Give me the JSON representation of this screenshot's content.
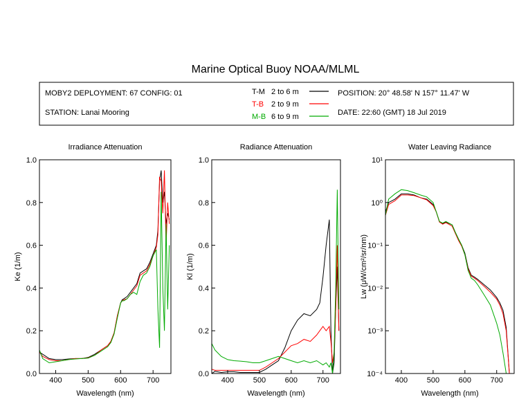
{
  "title": "Marine Optical Buoy NOAA/MLML",
  "info": {
    "deployment": "MOBY2 DEPLOYMENT: 67 CONFIG: 01",
    "station": "STATION: Lanai Mooring",
    "position": "POSITION: 20° 48.58' N   157° 11.47' W",
    "date": "DATE: 22:60 (GMT) 18 Jul 2019"
  },
  "legend": [
    {
      "code": "T-M",
      "range": "2 to 6  m",
      "color": "#000000"
    },
    {
      "code": "T-B",
      "range": "2 to 9  m",
      "color": "#ff0000"
    },
    {
      "code": "M-B",
      "range": "6 to 9  m",
      "color": "#00aa00"
    }
  ],
  "chart_data": [
    {
      "type": "line",
      "title": "Irradiance Attenuation",
      "xlabel": "Wavelength (nm)",
      "ylabel": "Ke  (1/m)",
      "xlim": [
        350,
        755
      ],
      "ylim": [
        0,
        1
      ],
      "xticks": [
        400,
        500,
        600,
        700
      ],
      "xtick_labels": [
        "400",
        "500",
        "600",
        "700"
      ],
      "yticks": [
        0,
        0.2,
        0.4,
        0.6,
        0.8,
        1.0
      ],
      "ytick_labels": [
        "0.0",
        "0.2",
        "0.4",
        "0.6",
        "0.8",
        "1.0"
      ],
      "x": [
        350,
        360,
        380,
        400,
        420,
        440,
        460,
        480,
        500,
        520,
        540,
        560,
        570,
        580,
        590,
        600,
        605,
        610,
        620,
        630,
        640,
        650,
        660,
        670,
        680,
        690,
        700,
        710,
        715,
        720,
        725,
        730,
        735,
        740,
        745,
        750
      ],
      "series": [
        {
          "name": "T-M",
          "values": [
            0.1,
            0.09,
            0.07,
            0.065,
            0.065,
            0.068,
            0.07,
            0.07,
            0.075,
            0.09,
            0.11,
            0.13,
            0.15,
            0.19,
            0.27,
            0.33,
            0.345,
            0.35,
            0.36,
            0.38,
            0.4,
            0.42,
            0.47,
            0.48,
            0.49,
            0.52,
            0.56,
            0.6,
            0.67,
            0.9,
            0.95,
            0.8,
            0.85,
            0.7,
            0.75,
            0.72
          ]
        },
        {
          "name": "T-B",
          "values": [
            0.1,
            0.08,
            0.065,
            0.06,
            0.06,
            0.065,
            0.07,
            0.07,
            0.073,
            0.085,
            0.11,
            0.13,
            0.15,
            0.19,
            0.27,
            0.33,
            0.34,
            0.345,
            0.35,
            0.37,
            0.39,
            0.41,
            0.46,
            0.47,
            0.48,
            0.51,
            0.55,
            0.59,
            0.65,
            0.92,
            0.9,
            0.75,
            0.95,
            0.6,
            0.8,
            0.7
          ]
        },
        {
          "name": "M-B",
          "values": [
            0.11,
            0.07,
            0.05,
            0.055,
            0.06,
            0.065,
            0.068,
            0.07,
            0.072,
            0.085,
            0.105,
            0.125,
            0.145,
            0.185,
            0.26,
            0.33,
            0.34,
            0.34,
            0.35,
            0.37,
            0.38,
            0.37,
            0.43,
            0.46,
            0.47,
            0.5,
            0.55,
            0.58,
            0.3,
            0.12,
            0.85,
            0.4,
            0.2,
            0.7,
            0.3,
            0.6
          ]
        }
      ]
    },
    {
      "type": "line",
      "title": "Radiance Attenuation",
      "xlabel": "Wavelength (nm)",
      "ylabel": "Kl  (1/m)",
      "xlim": [
        350,
        755
      ],
      "ylim": [
        0,
        1
      ],
      "xticks": [
        400,
        500,
        600,
        700
      ],
      "xtick_labels": [
        "400",
        "500",
        "600",
        "700"
      ],
      "yticks": [
        0,
        0.2,
        0.4,
        0.6,
        0.8,
        1.0
      ],
      "ytick_labels": [
        "0.0",
        "0.2",
        "0.4",
        "0.6",
        "0.8",
        "1.0"
      ],
      "x": [
        350,
        360,
        380,
        400,
        420,
        440,
        460,
        480,
        500,
        520,
        540,
        560,
        580,
        600,
        620,
        640,
        660,
        680,
        690,
        700,
        710,
        720,
        725,
        730,
        735,
        740,
        745,
        750
      ],
      "series": [
        {
          "name": "T-M",
          "values": [
            0.0,
            0.01,
            0.005,
            0.008,
            0.008,
            0.005,
            0.005,
            0.005,
            0.005,
            0.02,
            0.04,
            0.06,
            0.12,
            0.2,
            0.25,
            0.28,
            0.27,
            0.3,
            0.33,
            0.45,
            0.6,
            0.72,
            0.2,
            0.0,
            0.05,
            0.3,
            0.5,
            0.2
          ]
        },
        {
          "name": "T-B",
          "values": [
            0.02,
            0.015,
            0.015,
            0.015,
            0.015,
            0.015,
            0.015,
            0.015,
            0.015,
            0.03,
            0.05,
            0.07,
            0.1,
            0.13,
            0.14,
            0.16,
            0.15,
            0.18,
            0.2,
            0.22,
            0.2,
            0.22,
            0.15,
            0.05,
            0.1,
            0.3,
            0.6,
            0.2
          ]
        },
        {
          "name": "M-B",
          "values": [
            0.14,
            0.11,
            0.08,
            0.065,
            0.06,
            0.058,
            0.055,
            0.05,
            0.05,
            0.06,
            0.07,
            0.08,
            0.07,
            0.06,
            0.05,
            0.06,
            0.05,
            0.06,
            0.05,
            0.04,
            0.05,
            0.03,
            0.05,
            0.0,
            0.1,
            0.4,
            0.86,
            0.3
          ]
        }
      ]
    },
    {
      "type": "line",
      "title": "Water Leaving Radiance",
      "xlabel": "Wavelength (nm)",
      "ylabel": "Lw  (μW/cm²/sr/nm)",
      "yscale": "log",
      "xlim": [
        350,
        755
      ],
      "ylim": [
        0.0001,
        10
      ],
      "xticks": [
        400,
        500,
        600,
        700
      ],
      "xtick_labels": [
        "400",
        "500",
        "600",
        "700"
      ],
      "yticks": [
        0.0001,
        0.001,
        0.01,
        0.1,
        1,
        10
      ],
      "ytick_labels": [
        "10⁻⁴",
        "10⁻³",
        "10⁻²",
        "10⁻¹",
        "10⁰",
        "10¹"
      ],
      "x": [
        350,
        360,
        380,
        400,
        420,
        440,
        460,
        480,
        500,
        510,
        520,
        530,
        540,
        560,
        570,
        580,
        590,
        600,
        610,
        620,
        630,
        640,
        660,
        680,
        700,
        710,
        720,
        730,
        740
      ],
      "series": [
        {
          "name": "T-M",
          "values": [
            0.6,
            1.0,
            1.2,
            1.6,
            1.6,
            1.5,
            1.3,
            1.2,
            0.9,
            0.6,
            0.35,
            0.32,
            0.35,
            0.3,
            0.2,
            0.14,
            0.1,
            0.065,
            0.03,
            0.02,
            0.018,
            0.016,
            0.012,
            0.009,
            0.006,
            0.0045,
            0.003,
            0.0012,
            8e-05
          ]
        },
        {
          "name": "T-B",
          "values": [
            0.5,
            0.9,
            1.1,
            1.5,
            1.5,
            1.45,
            1.3,
            1.15,
            0.85,
            0.6,
            0.35,
            0.31,
            0.34,
            0.28,
            0.19,
            0.13,
            0.095,
            0.06,
            0.028,
            0.019,
            0.017,
            0.015,
            0.011,
            0.008,
            0.0055,
            0.004,
            0.0025,
            0.001,
            6e-05
          ]
        },
        {
          "name": "M-B",
          "values": [
            0.5,
            1.2,
            1.6,
            2.0,
            1.9,
            1.7,
            1.5,
            1.35,
            1.0,
            0.6,
            0.36,
            0.33,
            0.36,
            0.3,
            0.2,
            0.14,
            0.1,
            0.06,
            0.026,
            0.017,
            0.015,
            0.012,
            0.007,
            0.004,
            0.0015,
            0.0008,
            0.0003,
            8e-05,
            3e-05
          ]
        }
      ]
    }
  ]
}
